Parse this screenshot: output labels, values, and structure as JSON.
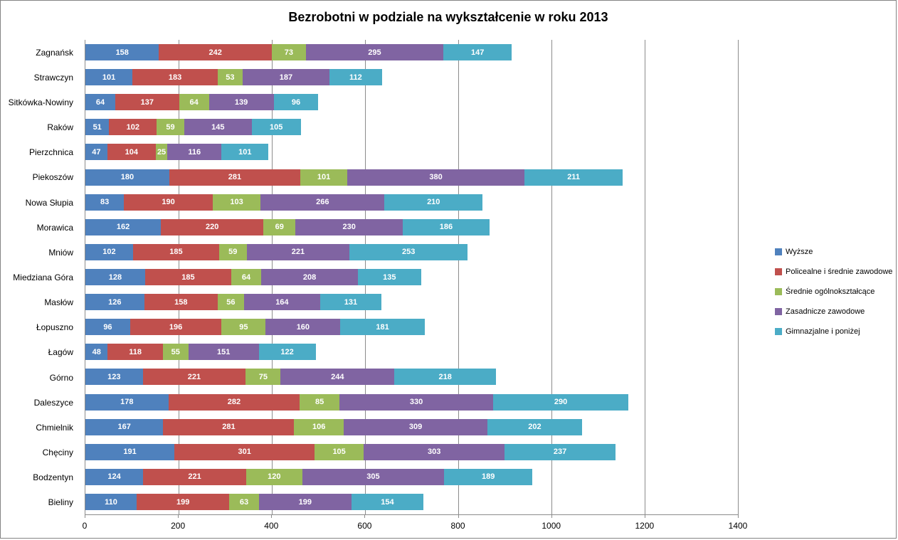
{
  "chart_data": {
    "type": "bar",
    "orientation": "horizontal",
    "stacked": true,
    "title": "Bezrobotni w podziale na wykształcenie w roku 2013",
    "categories": [
      "Zagnańsk",
      "Strawczyn",
      "Sitkówka-Nowiny",
      "Raków",
      "Pierzchnica",
      "Piekoszów",
      "Nowa Słupia",
      "Morawica",
      "Mniów",
      "Miedziana Góra",
      "Masłów",
      "Łopuszno",
      "Łagów",
      "Górno",
      "Daleszyce",
      "Chmielnik",
      "Chęciny",
      "Bodzentyn",
      "Bieliny"
    ],
    "series": [
      {
        "name": "Wyższe",
        "color": "#4f81bd",
        "values": [
          158,
          101,
          64,
          51,
          47,
          180,
          83,
          162,
          102,
          128,
          126,
          96,
          48,
          123,
          178,
          167,
          191,
          124,
          110
        ]
      },
      {
        "name": "Policealne i średnie zawodowe",
        "color": "#c0504d",
        "values": [
          242,
          183,
          137,
          102,
          104,
          281,
          190,
          220,
          185,
          185,
          158,
          196,
          118,
          221,
          282,
          281,
          301,
          221,
          199
        ]
      },
      {
        "name": "Średnie ogólnokształcące",
        "color": "#9bbb59",
        "values": [
          73,
          53,
          64,
          59,
          25,
          101,
          103,
          69,
          59,
          64,
          56,
          95,
          55,
          75,
          85,
          106,
          105,
          120,
          63
        ]
      },
      {
        "name": "Zasadnicze zawodowe",
        "color": "#8064a2",
        "values": [
          295,
          187,
          139,
          145,
          116,
          380,
          266,
          230,
          221,
          208,
          164,
          160,
          151,
          244,
          330,
          309,
          303,
          305,
          199
        ]
      },
      {
        "name": "Gimnazjalne i poniżej",
        "color": "#4bacc6",
        "values": [
          147,
          112,
          96,
          105,
          101,
          211,
          210,
          186,
          253,
          135,
          131,
          181,
          122,
          218,
          290,
          202,
          237,
          189,
          154
        ]
      }
    ],
    "xlim": [
      0,
      1400
    ],
    "x_ticks": [
      0,
      200,
      400,
      600,
      800,
      1000,
      1200,
      1400
    ],
    "grid": true,
    "legend_position": "right",
    "data_labels": true,
    "data_label_color": "#ffffff",
    "gridline_color": "#8c8c8c"
  }
}
